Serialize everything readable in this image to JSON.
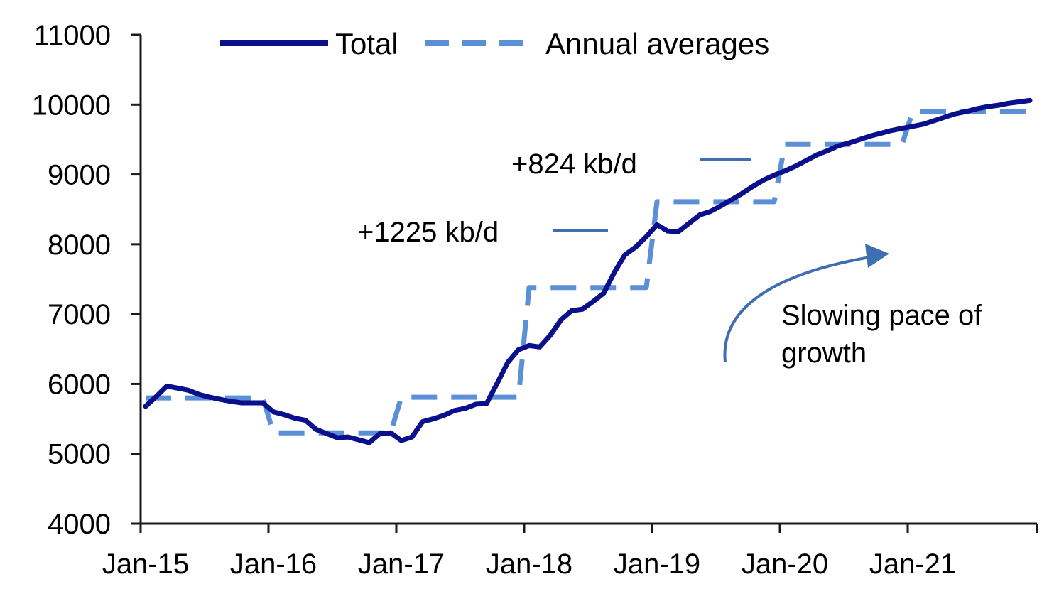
{
  "chart_data": {
    "type": "line",
    "title": "",
    "xlabel": "",
    "ylabel": "",
    "ylim": [
      4000,
      11000
    ],
    "yticks": [
      4000,
      5000,
      6000,
      7000,
      8000,
      9000,
      10000,
      11000
    ],
    "x_start": "Jan-15",
    "x_ticks": [
      "Jan-15",
      "Jan-16",
      "Jan-17",
      "Jan-18",
      "Jan-19",
      "Jan-20",
      "Jan-21"
    ],
    "grid": false,
    "legend_position": "top-left",
    "series": [
      {
        "name": "Total",
        "style": "solid",
        "color": "#0a0f8c",
        "values": [
          5680,
          5820,
          5970,
          5940,
          5910,
          5850,
          5810,
          5780,
          5750,
          5730,
          5730,
          5730,
          5600,
          5560,
          5510,
          5480,
          5350,
          5290,
          5230,
          5240,
          5200,
          5160,
          5290,
          5300,
          5190,
          5240,
          5460,
          5500,
          5550,
          5620,
          5650,
          5710,
          5720,
          6010,
          6310,
          6490,
          6550,
          6530,
          6700,
          6920,
          7050,
          7070,
          7180,
          7300,
          7600,
          7850,
          7960,
          8110,
          8280,
          8190,
          8180,
          8300,
          8420,
          8470,
          8550,
          8640,
          8730,
          8830,
          8920,
          8990,
          9050,
          9120,
          9200,
          9280,
          9340,
          9410,
          9450,
          9500,
          9550,
          9590,
          9630,
          9660,
          9690,
          9720,
          9770,
          9820,
          9870,
          9900,
          9940,
          9970,
          9990,
          10020,
          10040,
          10060
        ]
      },
      {
        "name": "Annual averages",
        "style": "dashed",
        "color": "#5b8fd6",
        "annual_values": [
          5800,
          5300,
          5810,
          7380,
          8610,
          9430,
          9900
        ]
      }
    ],
    "annotations": [
      {
        "text": "+824 kb/d",
        "marker": "line"
      },
      {
        "text": "+1225 kb/d",
        "marker": "line"
      },
      {
        "text": "Slowing pace of",
        "marker": "none"
      },
      {
        "text": "growth",
        "marker": "curved-arrow"
      }
    ]
  }
}
